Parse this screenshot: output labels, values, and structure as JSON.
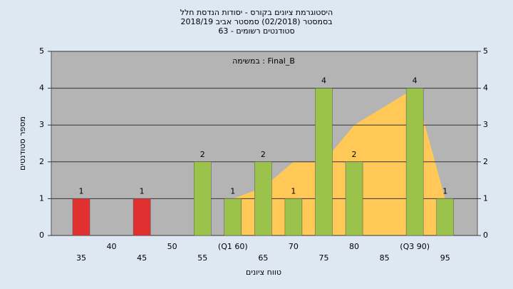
{
  "chart_data": {
    "type": "bar",
    "title": [
      "היסטוגרמת ציונים בקורס - יסודות הנדסת חלל",
      "בסמסטר  (02/2018)  סמסטר אביב 2018/19",
      "63 - סטודנטים רשומים"
    ],
    "x_label": "טווח ציונים",
    "y_label": "מספר סטודנטים",
    "categories": [
      "35",
      "40",
      "45",
      "50",
      "55",
      "(Q1 60)",
      "65",
      "70",
      "75",
      "80",
      "85",
      "(Q3 90)",
      "95"
    ],
    "values": [
      1,
      0,
      1,
      0,
      2,
      1,
      2,
      1,
      4,
      2,
      0,
      4,
      1
    ],
    "colors": [
      "#e03030",
      "#9bc24a",
      "#e03030",
      "#9bc24a",
      "#9bc24a",
      "#9bc24a",
      "#9bc24a",
      "#9bc24a",
      "#9bc24a",
      "#9bc24a",
      "#9bc24a",
      "#9bc24a",
      "#9bc24a"
    ],
    "area": {
      "name": "במשימה : Final_B",
      "color": "#ffc857",
      "values": [
        null,
        null,
        null,
        null,
        null,
        1,
        1.3,
        2,
        2,
        3,
        3.5,
        4,
        1
      ]
    },
    "ylim": [
      0,
      5
    ],
    "yticks": [
      0,
      1,
      2,
      3,
      4,
      5
    ],
    "grid": true
  }
}
